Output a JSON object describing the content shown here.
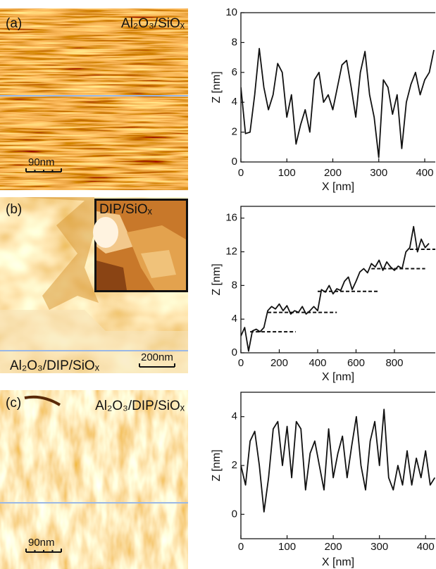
{
  "chart_data": [
    {
      "type": "line",
      "image": {
        "panel_label": "(a)",
        "sample_label": "Al₂O₃/SiOₓ",
        "scale_bar": "90nm"
      },
      "xlabel": "X [nm]",
      "ylabel": "Z [nm]",
      "xlim": [
        0,
        423
      ],
      "ylim": [
        0,
        10
      ],
      "xticks": [
        0,
        100,
        200,
        300,
        400
      ],
      "yticks": [
        0,
        2,
        4,
        6,
        8,
        10
      ],
      "series": [
        {
          "color": "#111111",
          "style": "solid",
          "x": [
            0,
            10,
            20,
            30,
            40,
            50,
            60,
            70,
            80,
            90,
            100,
            110,
            120,
            130,
            140,
            150,
            160,
            170,
            180,
            190,
            200,
            210,
            220,
            230,
            240,
            250,
            260,
            270,
            280,
            290,
            300,
            310,
            320,
            330,
            340,
            350,
            360,
            370,
            380,
            390,
            400,
            410,
            420
          ],
          "values": [
            5,
            1.9,
            2,
            4.5,
            7.6,
            5,
            3.5,
            4.5,
            6.6,
            6,
            3,
            4.5,
            1.2,
            2.5,
            3.5,
            2,
            5.5,
            6,
            4,
            4.5,
            3.5,
            5,
            6.5,
            6.8,
            5,
            3,
            6,
            7.4,
            4.5,
            3,
            0.3,
            5.5,
            5,
            3.2,
            4.5,
            0.9,
            4,
            5.2,
            6,
            4.5,
            5.5,
            6,
            7.5
          ]
        }
      ]
    },
    {
      "type": "line",
      "image": {
        "panel_label": "(b)",
        "sample_label": "Al₂O₃/DIP/SiOₓ",
        "scale_bar": "200nm",
        "inset_label": "DIP/SiOₓ"
      },
      "xlabel": "X [nm]",
      "ylabel": "Z [nm]",
      "xlim": [
        0,
        1013
      ],
      "ylim": [
        0,
        17.4
      ],
      "xticks": [
        0,
        200,
        400,
        600,
        800
      ],
      "yticks": [
        0,
        4,
        8,
        12,
        16
      ],
      "series": [
        {
          "color": "#111111",
          "style": "solid",
          "x": [
            0,
            20,
            40,
            60,
            80,
            100,
            120,
            140,
            160,
            180,
            200,
            220,
            240,
            260,
            280,
            300,
            320,
            340,
            360,
            380,
            400,
            420,
            440,
            460,
            480,
            500,
            520,
            540,
            560,
            580,
            600,
            620,
            640,
            660,
            680,
            700,
            720,
            740,
            760,
            780,
            800,
            820,
            840,
            860,
            880,
            900,
            920,
            940,
            960,
            980
          ],
          "values": [
            2,
            3,
            0.2,
            2.6,
            2.8,
            2.5,
            3,
            5,
            5.5,
            5.2,
            5.8,
            5,
            5.6,
            4.6,
            5,
            4.8,
            5.5,
            4.6,
            5,
            5.5,
            5,
            7.5,
            7.2,
            8,
            7,
            7.6,
            7.4,
            8.5,
            9,
            7.5,
            8.5,
            9.6,
            10,
            9.5,
            10.6,
            10.2,
            11,
            9.8,
            10.8,
            10.2,
            9.8,
            10.3,
            10,
            12,
            12.5,
            15,
            12,
            13.5,
            12.5,
            13
          ]
        },
        {
          "color": "#111111",
          "style": "dashed",
          "x": [
            48,
            286,
            null,
            140,
            500,
            null,
            400,
            715,
            null,
            680,
            960,
            null,
            880,
            1013
          ],
          "values": [
            2.5,
            2.5,
            null,
            4.8,
            4.8,
            null,
            7.3,
            7.3,
            null,
            10,
            10,
            null,
            12.3,
            12.3
          ]
        }
      ]
    },
    {
      "type": "line",
      "image": {
        "panel_label": "(c)",
        "sample_label": "Al₂O₃/DIP/SiOₓ",
        "scale_bar": "90nm"
      },
      "xlabel": "X [nm]",
      "ylabel": "Z [nm]",
      "xlim": [
        0,
        421
      ],
      "ylim": [
        -1,
        5
      ],
      "xticks": [
        0,
        100,
        200,
        300,
        400
      ],
      "yticks": [
        0,
        2,
        4
      ],
      "series": [
        {
          "color": "#111111",
          "style": "solid",
          "x": [
            0,
            10,
            20,
            30,
            40,
            50,
            60,
            70,
            80,
            90,
            100,
            110,
            120,
            130,
            140,
            150,
            160,
            170,
            180,
            190,
            200,
            210,
            220,
            230,
            240,
            250,
            260,
            270,
            280,
            290,
            300,
            310,
            320,
            330,
            340,
            350,
            360,
            370,
            380,
            390,
            400,
            410,
            420
          ],
          "values": [
            2,
            1.2,
            3,
            3.4,
            2,
            0.1,
            1.5,
            3.5,
            3.8,
            2,
            3.6,
            1.5,
            3.8,
            3.5,
            1,
            2.5,
            3,
            2,
            1,
            3.5,
            1.5,
            2.5,
            3.2,
            1.5,
            2.8,
            4,
            2,
            1,
            3,
            3.8,
            2,
            4.3,
            1.5,
            1,
            2,
            1.2,
            2.6,
            1.2,
            2.3,
            1.5,
            2.6,
            1.2,
            1.5
          ]
        }
      ]
    }
  ]
}
